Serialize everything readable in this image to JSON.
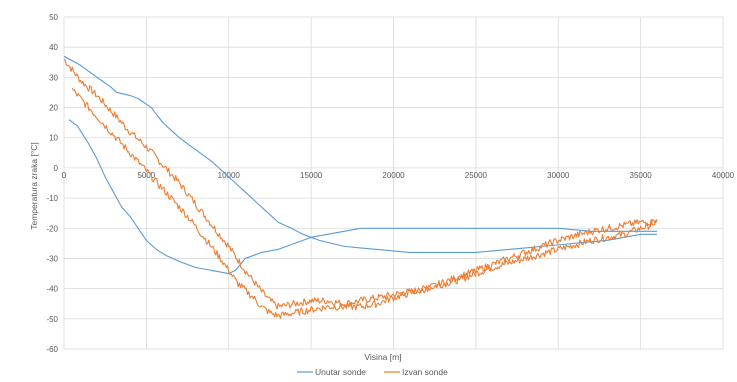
{
  "chart_data": {
    "type": "line",
    "title": "",
    "xlabel": "Visina [m]",
    "ylabel": "Temperatura zraka [°C]",
    "xlim": [
      0,
      40000
    ],
    "ylim": [
      -60,
      50
    ],
    "x_ticks": [
      "0",
      "5000",
      "10000",
      "15000",
      "20000",
      "25000",
      "30000",
      "35000",
      "40000"
    ],
    "y_ticks": [
      "50",
      "40",
      "30",
      "20",
      "10",
      "0",
      "-10",
      "-20",
      "-30",
      "-40",
      "-50",
      "-60"
    ],
    "grid": true,
    "legend_position": "bottom",
    "colors": {
      "unutar": "#5b9bd5",
      "izvan": "#ed7d31",
      "grid": "#d9d9d9",
      "text": "#595959"
    },
    "series": [
      {
        "name": "Unutar sonde",
        "color": "#5b9bd5",
        "segments": [
          {
            "x": [
              0,
              1000,
              2000,
              2800,
              3200,
              4000,
              4500,
              5300,
              6000,
              7000,
              8000,
              9000,
              10000,
              11000,
              12000,
              13000,
              13800,
              14500,
              15500,
              17000,
              19000,
              21000,
              23000,
              25000,
              27000,
              29000,
              31000,
              33000,
              35000,
              36000
            ],
            "y": [
              37,
              34,
              30,
              27,
              25,
              24,
              23,
              20,
              15,
              10,
              6,
              2,
              -3,
              -8,
              -13,
              -18,
              -20,
              -22,
              -24,
              -26,
              -27,
              -28,
              -28,
              -28,
              -27,
              -26,
              -25,
              -24,
              -22,
              -22
            ]
          },
          {
            "x": [
              300,
              800,
              1500,
              2000,
              2500,
              3000,
              3500,
              4000,
              4500,
              5000,
              5600,
              6200,
              7000,
              8000,
              9000,
              10000,
              10400,
              10700,
              11000,
              12000,
              13000,
              14000,
              15000,
              16000,
              17000,
              18000,
              19000,
              20000,
              22000,
              24000,
              26000,
              28000,
              30000,
              32000,
              34000,
              35000,
              36000
            ],
            "y": [
              16,
              14,
              8,
              3,
              -3,
              -8,
              -13,
              -16,
              -20,
              -24,
              -27,
              -29,
              -31,
              -33,
              -34,
              -35,
              -34,
              -32,
              -30,
              -28,
              -27,
              -25,
              -23,
              -22,
              -21,
              -20,
              -20,
              -20,
              -20,
              -20,
              -20,
              -20,
              -20,
              -21,
              -21,
              -21,
              -21
            ]
          }
        ]
      },
      {
        "name": "Izvan sonde",
        "color": "#ed7d31",
        "segments": [
          {
            "x": [
              0,
              1000,
              2000,
              3000,
              4000,
              5000,
              6000,
              7000,
              8000,
              9000,
              10000,
              11000,
              12000,
              12500,
              13000,
              14000,
              15000,
              16000,
              17000,
              18000,
              20000,
              22000,
              24000,
              26000,
              28000,
              30000,
              32000,
              34000,
              35000,
              35600,
              36000
            ],
            "y": [
              36,
              29,
              24,
              18,
              12,
              7,
              1,
              -5,
              -12,
              -19,
              -26,
              -34,
              -41,
              -44,
              -46,
              -45,
              -44,
              -44,
              -45,
              -44,
              -42,
              -40,
              -37,
              -33,
              -30,
              -27,
              -24,
              -22,
              -20,
              -19,
              -17
            ]
          },
          {
            "x": [
              500,
              1500,
              2500,
              3500,
              4500,
              5500,
              6500,
              7500,
              8500,
              9500,
              10500,
              11500,
              12000,
              12500,
              13000,
              14000,
              15000,
              16000,
              17000,
              18000,
              19000,
              20000,
              22000,
              24000,
              26000,
              28000,
              30000,
              32000,
              34000,
              35000,
              36000
            ],
            "y": [
              26,
              20,
              14,
              8,
              2,
              -4,
              -10,
              -16,
              -23,
              -30,
              -38,
              -43,
              -46,
              -48,
              -49,
              -48,
              -47,
              -46,
              -46,
              -46,
              -45,
              -43,
              -40,
              -36,
              -32,
              -28,
              -24,
              -21,
              -19,
              -18,
              -18
            ]
          }
        ]
      }
    ]
  }
}
